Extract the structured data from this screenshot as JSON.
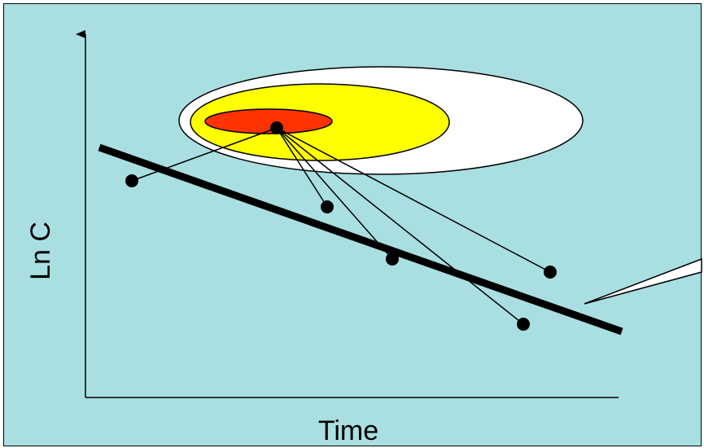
{
  "axes": {
    "x_label": "Time",
    "y_label": "Ln C"
  },
  "colors": {
    "background": "#a9dfe1",
    "outer_ellipse": "#ffffff",
    "middle_ellipse": "#ffff00",
    "inner_ellipse": "#ff3300",
    "line": "#000000"
  }
}
